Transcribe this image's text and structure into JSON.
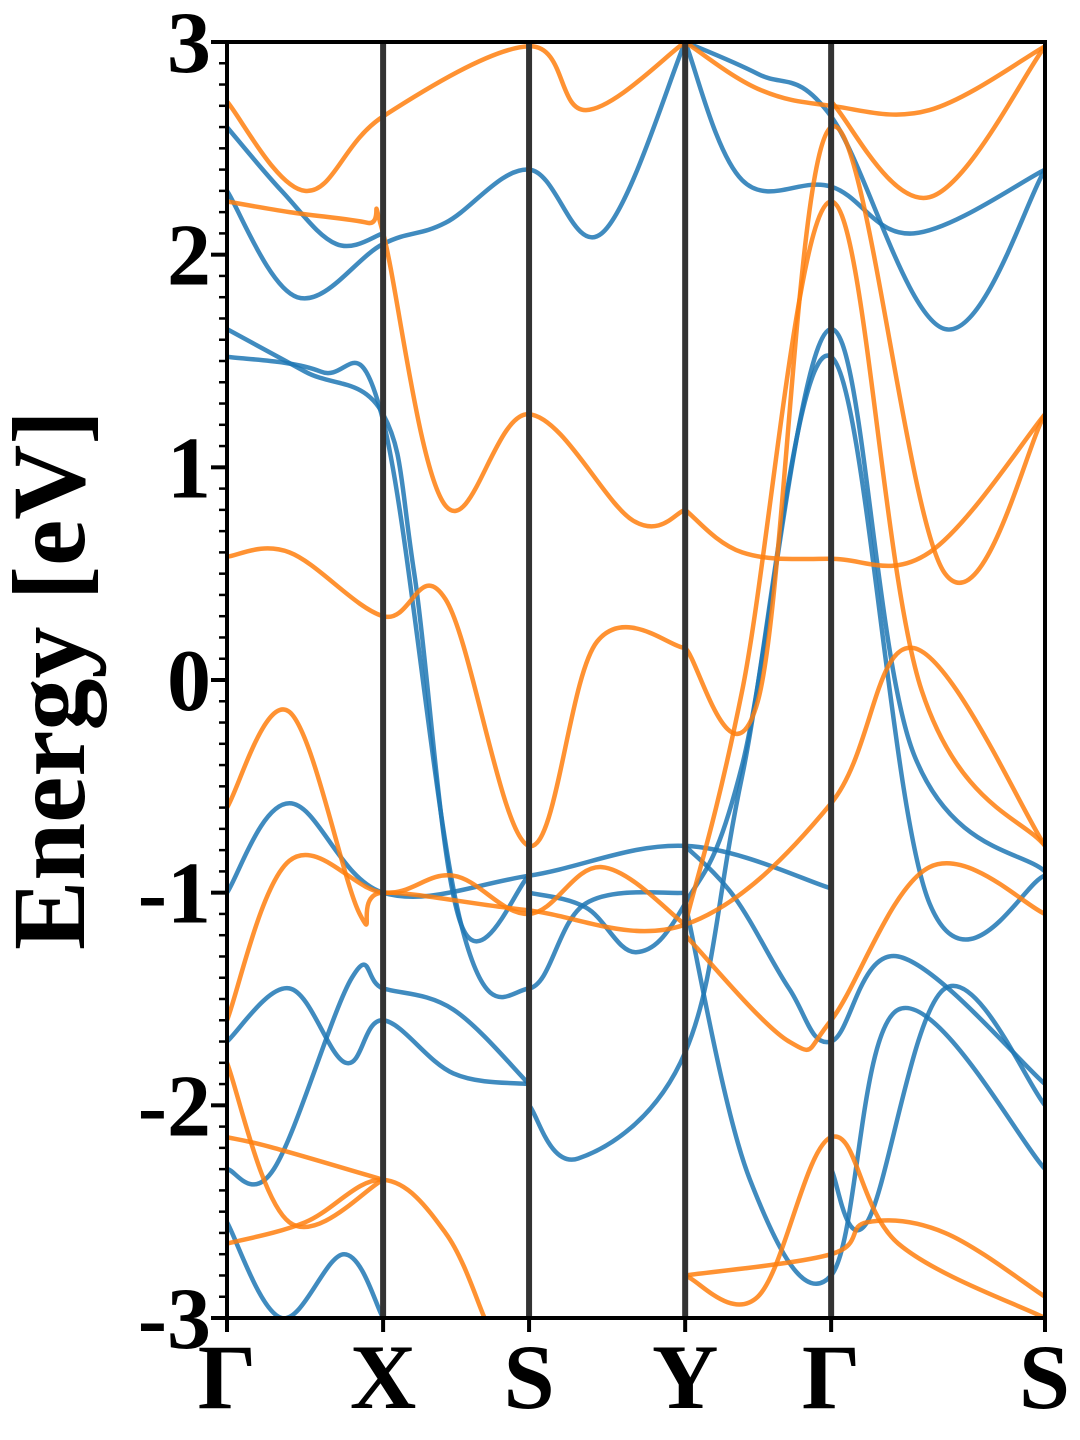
{
  "chart_data": {
    "type": "line",
    "title": "",
    "xlabel": "",
    "ylabel": "Energy [eV]",
    "ylim": [
      -3,
      3
    ],
    "yticks": [
      -3,
      -2,
      -1,
      0,
      1,
      2,
      3
    ],
    "ytick_labels": [
      "-3",
      "-2",
      "-1",
      "0",
      "1",
      "2",
      "3"
    ],
    "minor_ytick_step": 0.1,
    "kpath": [
      {
        "label": "Γ",
        "k": 0.0
      },
      {
        "label": "X",
        "k": 1.0
      },
      {
        "label": "S",
        "k": 1.935
      },
      {
        "label": "Y",
        "k": 2.935
      },
      {
        "label": "Γ",
        "k": 3.87
      },
      {
        "label": "S",
        "k": 5.24
      }
    ],
    "grid": false,
    "legend": "none",
    "colors": {
      "spin_up": "#1f77b4",
      "spin_down": "#ff7f0e",
      "kline": "#333333"
    },
    "series": [
      {
        "spin": "up",
        "x": [
          0,
          0.4,
          1.0,
          1.935,
          2.935,
          3.87
        ],
        "y": [
          -1.0,
          -0.58,
          -1.0,
          -0.92,
          -0.78,
          -0.98
        ]
      },
      {
        "spin": "up",
        "x": [
          0,
          0.4,
          0.76,
          1.0,
          1.45,
          1.935
        ],
        "y": [
          -1.7,
          -1.45,
          -1.8,
          -1.6,
          -1.85,
          -1.9
        ]
      },
      {
        "spin": "up",
        "x": [
          0,
          0.5,
          1.0,
          1.2,
          1.5,
          1.935
        ],
        "y": [
          1.65,
          1.45,
          1.25,
          0.5,
          -1.15,
          -0.92
        ]
      },
      {
        "spin": "up",
        "x": [
          0,
          0.6,
          1.0,
          1.5,
          1.935,
          2.3,
          2.935
        ],
        "y": [
          1.52,
          1.45,
          1.22,
          -1.15,
          -1.45,
          -1.05,
          -1.0
        ]
      },
      {
        "spin": "up",
        "x": [
          0,
          0.45,
          1.0,
          1.4,
          1.935,
          2.4,
          2.935
        ],
        "y": [
          2.3,
          1.8,
          2.05,
          2.15,
          2.4,
          2.1,
          3.0
        ]
      },
      {
        "spin": "up",
        "x": [
          1.935,
          2.3,
          2.62,
          2.935,
          3.3,
          3.87,
          4.4,
          5.24
        ],
        "y": [
          -1.0,
          -1.07,
          -1.28,
          -1.05,
          -0.4,
          1.65,
          -0.35,
          -0.9
        ]
      },
      {
        "spin": "up",
        "x": [
          1.935,
          2.25,
          2.935,
          3.3,
          3.87,
          4.5,
          5.24
        ],
        "y": [
          -2.0,
          -2.25,
          -1.75,
          -0.45,
          1.52,
          -1.05,
          -0.92
        ]
      },
      {
        "spin": "up",
        "x": [
          2.935,
          3.25,
          3.6,
          3.87,
          4.3,
          5.24
        ],
        "y": [
          -0.78,
          -1.02,
          -1.45,
          -1.7,
          -1.3,
          -1.9
        ]
      },
      {
        "spin": "up",
        "x": [
          0,
          0.3,
          0.8,
          1.0,
          1.45,
          1.935
        ],
        "y": [
          -2.3,
          -2.3,
          -1.4,
          -1.45,
          -1.55,
          -1.9
        ]
      },
      {
        "spin": "up",
        "x": [
          0,
          0.35,
          0.75,
          1.0
        ],
        "y": [
          -2.55,
          -3.0,
          -2.7,
          -3.0
        ]
      },
      {
        "spin": "up",
        "x": [
          2.935,
          3.35,
          3.87,
          4.3,
          5.24
        ],
        "y": [
          -1.05,
          -2.35,
          -2.8,
          -1.55,
          -2.3
        ]
      },
      {
        "spin": "up",
        "x": [
          3.87,
          4.1,
          4.6,
          5.24
        ],
        "y": [
          -2.3,
          -2.55,
          -1.45,
          -2.0
        ]
      },
      {
        "spin": "up",
        "x": [
          0,
          0.35,
          0.7,
          1.0
        ],
        "y": [
          2.6,
          2.3,
          2.05,
          2.1
        ]
      },
      {
        "spin": "up",
        "x": [
          2.935,
          3.3,
          3.87,
          4.4,
          5.24
        ],
        "y": [
          3.0,
          2.35,
          2.32,
          2.1,
          2.4
        ]
      },
      {
        "spin": "up",
        "x": [
          2.935,
          3.4,
          3.87,
          4.6,
          5.24
        ],
        "y": [
          3.0,
          2.85,
          2.65,
          1.65,
          2.4
        ]
      },
      {
        "spin": "down",
        "x": [
          0,
          0.4,
          1.0,
          1.4,
          1.935,
          2.37,
          2.935
        ],
        "y": [
          0.58,
          0.6,
          0.3,
          0.38,
          -0.78,
          0.18,
          0.15
        ]
      },
      {
        "spin": "down",
        "x": [
          0,
          0.4,
          0.85,
          1.0,
          1.9,
          2.935,
          3.87,
          4.4,
          5.24
        ],
        "y": [
          -0.6,
          -0.15,
          -1.1,
          -1.0,
          -1.08,
          -1.15,
          -0.58,
          0.15,
          -0.78
        ]
      },
      {
        "spin": "down",
        "x": [
          0,
          0.4,
          1.0,
          1.45,
          1.935,
          2.4,
          2.935
        ],
        "y": [
          -1.6,
          -0.85,
          -1.0,
          -0.92,
          -1.1,
          -0.88,
          -1.15
        ]
      },
      {
        "spin": "down",
        "x": [
          0,
          0.4,
          0.9,
          1.0,
          1.4,
          1.935,
          2.6,
          2.935
        ],
        "y": [
          2.25,
          2.2,
          2.15,
          2.1,
          0.82,
          1.25,
          0.75,
          0.8
        ]
      },
      {
        "spin": "down",
        "x": [
          0,
          0.5,
          1.0,
          1.935,
          2.3,
          2.935
        ],
        "y": [
          2.72,
          2.3,
          2.65,
          2.98,
          2.68,
          3.0
        ]
      },
      {
        "spin": "down",
        "x": [
          2.935,
          3.3,
          3.87,
          4.5,
          5.24
        ],
        "y": [
          0.8,
          0.6,
          0.57,
          0.6,
          1.25
        ]
      },
      {
        "spin": "down",
        "x": [
          2.935,
          3.4,
          3.87,
          4.6,
          5.24
        ],
        "y": [
          0.15,
          -0.1,
          2.6,
          0.5,
          1.25
        ]
      },
      {
        "spin": "down",
        "x": [
          2.935,
          3.3,
          3.87,
          4.45,
          5.24
        ],
        "y": [
          -1.15,
          -0.05,
          2.25,
          -0.05,
          -0.78
        ]
      },
      {
        "spin": "down",
        "x": [
          2.935,
          3.6,
          3.87,
          4.5,
          5.24
        ],
        "y": [
          -1.2,
          -1.7,
          -1.6,
          -0.88,
          -1.1
        ]
      },
      {
        "spin": "down",
        "x": [
          0,
          0.4,
          1.0
        ],
        "y": [
          -1.8,
          -2.55,
          -2.35
        ]
      },
      {
        "spin": "down",
        "x": [
          0,
          0.5,
          1.0,
          1.4,
          1.65
        ],
        "y": [
          -2.65,
          -2.55,
          -2.35,
          -2.6,
          -3.0
        ]
      },
      {
        "spin": "down",
        "x": [
          0,
          0.3,
          1.0
        ],
        "y": [
          -2.15,
          -2.2,
          -2.35
        ]
      },
      {
        "spin": "down",
        "x": [
          2.935,
          3.4,
          3.87,
          4.3,
          5.24
        ],
        "y": [
          -2.8,
          -2.9,
          -2.15,
          -2.65,
          -3.0
        ]
      },
      {
        "spin": "down",
        "x": [
          2.935,
          3.87,
          4.1,
          4.6,
          5.24
        ],
        "y": [
          -2.8,
          -2.7,
          -2.55,
          -2.6,
          -2.9
        ]
      },
      {
        "spin": "down",
        "x": [
          3.87,
          4.5,
          5.24
        ],
        "y": [
          2.72,
          2.27,
          2.98
        ]
      },
      {
        "spin": "down",
        "x": [
          2.935,
          3.4,
          3.87,
          4.5,
          5.24
        ],
        "y": [
          3.0,
          2.78,
          2.7,
          2.68,
          2.98
        ]
      }
    ]
  }
}
